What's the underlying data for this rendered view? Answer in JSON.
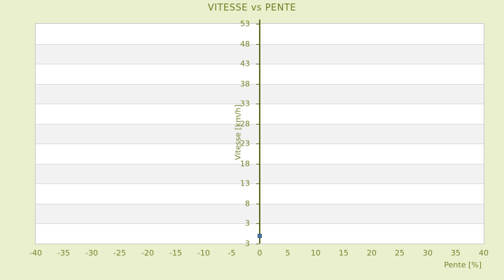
{
  "title": "VITESSE vs PENTE",
  "chart_data": {
    "type": "scatter",
    "title": "VITESSE vs PENTE",
    "xlabel": "Pente [%]",
    "ylabel": "Vitesse [km/h]",
    "xticks": [
      -40,
      -35,
      -30,
      -25,
      -20,
      -15,
      -10,
      -5,
      0,
      5,
      10,
      15,
      20,
      25,
      30,
      35,
      40
    ],
    "ytick_labels": [
      "53",
      "48",
      "43",
      "38",
      "33",
      "28",
      "23",
      "18",
      "13",
      "8",
      "3",
      "3"
    ],
    "xlim": [
      -40,
      40
    ],
    "ylim": [
      -2,
      53
    ],
    "grid": "horizontal-bands",
    "legend": "none",
    "zero_axis_line_x": 0,
    "points": [
      {
        "pente": 0,
        "vitesse": 0
      }
    ],
    "colors": {
      "background": "#eaf0cd",
      "text": "#77832e",
      "title_text": "#6d7c24",
      "band_gray": "#f2f2f2",
      "band_line": "#dcdcdc",
      "plot_border": "#c9c9c9",
      "axis_line": "#5b6b20",
      "point": "#4677a4"
    }
  }
}
